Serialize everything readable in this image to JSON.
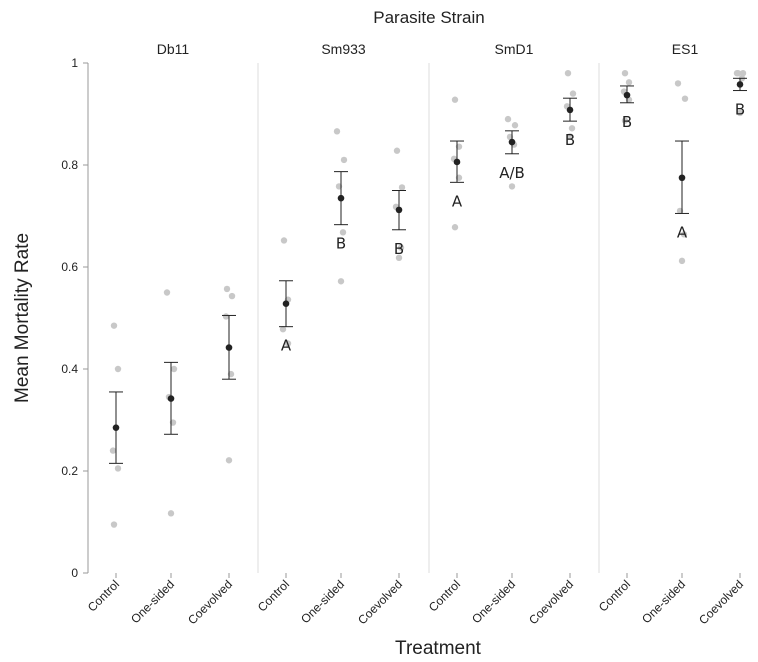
{
  "chart_data": {
    "type": "scatter",
    "title": "Parasite Strain",
    "xlabel": "Treatment",
    "ylabel": "Mean Mortality Rate",
    "ylim": [
      0,
      1
    ],
    "yticks": [
      "0",
      "0.2",
      "0.4",
      "0.6",
      "0.8",
      "1"
    ],
    "categories": [
      "Control",
      "One-sided",
      "Coevolved"
    ],
    "colors": {
      "points": "#c8c8c8",
      "mean": "#222222",
      "divider": "#dddddd"
    },
    "grid": false,
    "panels": [
      {
        "name": "Db11",
        "groups": [
          {
            "category": "Control",
            "points": [
              0.485,
              0.4,
              0.24,
              0.205,
              0.095
            ],
            "mean": 0.285,
            "error": [
              0.215,
              0.355
            ],
            "letter": ""
          },
          {
            "category": "One-sided",
            "points": [
              0.55,
              0.4,
              0.345,
              0.295,
              0.117
            ],
            "mean": 0.342,
            "error": [
              0.272,
              0.413
            ],
            "letter": ""
          },
          {
            "category": "Coevolved",
            "points": [
              0.557,
              0.543,
              0.503,
              0.39,
              0.221
            ],
            "mean": 0.442,
            "error": [
              0.38,
              0.505
            ],
            "letter": ""
          }
        ]
      },
      {
        "name": "Sm933",
        "groups": [
          {
            "category": "Control",
            "points": [
              0.652,
              0.536,
              0.478,
              0.45
            ],
            "mean": 0.528,
            "error": [
              0.483,
              0.573
            ],
            "letter": "A"
          },
          {
            "category": "One-sided",
            "points": [
              0.866,
              0.81,
              0.758,
              0.668,
              0.572
            ],
            "mean": 0.735,
            "error": [
              0.683,
              0.787
            ],
            "letter": "B"
          },
          {
            "category": "Coevolved",
            "points": [
              0.828,
              0.756,
              0.718,
              0.638,
              0.618
            ],
            "mean": 0.712,
            "error": [
              0.673,
              0.75
            ],
            "letter": "B"
          }
        ]
      },
      {
        "name": "SmD1",
        "groups": [
          {
            "category": "Control",
            "points": [
              0.928,
              0.836,
              0.812,
              0.775,
              0.678
            ],
            "mean": 0.806,
            "error": [
              0.766,
              0.847
            ],
            "letter": "A"
          },
          {
            "category": "One-sided",
            "points": [
              0.89,
              0.878,
              0.855,
              0.84,
              0.758
            ],
            "mean": 0.845,
            "error": [
              0.822,
              0.867
            ],
            "letter": "A/B"
          },
          {
            "category": "Coevolved",
            "points": [
              0.98,
              0.94,
              0.915,
              0.872,
              0.856
            ],
            "mean": 0.908,
            "error": [
              0.886,
              0.931
            ],
            "letter": "B"
          }
        ]
      },
      {
        "name": "ES1",
        "groups": [
          {
            "category": "Control",
            "points": [
              0.98,
              0.962,
              0.944,
              0.928,
              0.887
            ],
            "mean": 0.937,
            "error": [
              0.922,
              0.955
            ],
            "letter": "B"
          },
          {
            "category": "One-sided",
            "points": [
              0.96,
              0.93,
              0.71,
              0.664,
              0.612
            ],
            "mean": 0.775,
            "error": [
              0.705,
              0.847
            ],
            "letter": "A"
          },
          {
            "category": "Coevolved",
            "points": [
              0.98,
              0.98,
              0.98,
              0.97,
              0.902
            ],
            "mean": 0.958,
            "error": [
              0.946,
              0.97
            ],
            "letter": "B"
          }
        ]
      }
    ]
  }
}
